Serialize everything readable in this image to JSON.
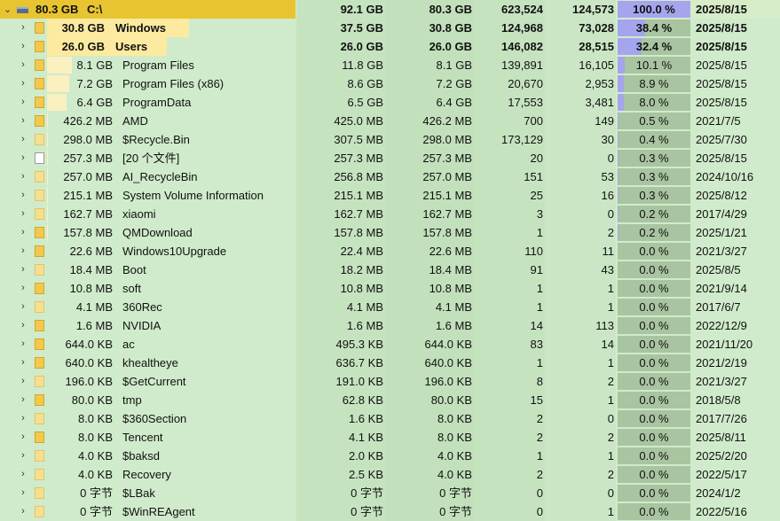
{
  "root": {
    "expand_icon": "chevron-down-icon",
    "drive_icon": "drive-icon",
    "size": "80.3 GB",
    "name": "C:\\",
    "total": "92.1 GB",
    "size2": "80.3 GB",
    "files": "623,524",
    "dirs": "124,573",
    "percent": "100.0 %",
    "percent_value": 100,
    "date": "2025/8/15"
  },
  "colors": {
    "background": "#d0ebcb",
    "highlight": "#f5d64c",
    "percent_fill": "#a5a5ee",
    "percent_cell": "#a8c4a0",
    "folder": "#f2c94c"
  },
  "rows": [
    {
      "size": "30.8 GB",
      "name": "Windows",
      "total": "37.5 GB",
      "size2": "30.8 GB",
      "files": "124,968",
      "dirs": "73,028",
      "percent": "38.4 %",
      "pv": 38.4,
      "date": "2025/8/15",
      "bold": true,
      "icon": "folder",
      "share": 0.384
    },
    {
      "size": "26.0 GB",
      "name": "Users",
      "total": "26.0 GB",
      "size2": "26.0 GB",
      "files": "146,082",
      "dirs": "28,515",
      "percent": "32.4 %",
      "pv": 32.4,
      "date": "2025/8/15",
      "bold": true,
      "icon": "folder",
      "share": 0.324
    },
    {
      "size": "8.1 GB",
      "name": "Program Files",
      "total": "11.8 GB",
      "size2": "8.1 GB",
      "files": "139,891",
      "dirs": "16,105",
      "percent": "10.1 %",
      "pv": 10.1,
      "date": "2025/8/15",
      "icon": "folder",
      "share": 0.101
    },
    {
      "size": "7.2 GB",
      "name": "Program Files (x86)",
      "total": "8.6 GB",
      "size2": "7.2 GB",
      "files": "20,670",
      "dirs": "2,953",
      "percent": "8.9 %",
      "pv": 8.9,
      "date": "2025/8/15",
      "icon": "folder",
      "share": 0.089
    },
    {
      "size": "6.4 GB",
      "name": "ProgramData",
      "total": "6.5 GB",
      "size2": "6.4 GB",
      "files": "17,553",
      "dirs": "3,481",
      "percent": "8.0 %",
      "pv": 8.0,
      "date": "2025/8/15",
      "icon": "folder",
      "share": 0.08
    },
    {
      "size": "426.2 MB",
      "name": "AMD",
      "total": "425.0 MB",
      "size2": "426.2 MB",
      "files": "700",
      "dirs": "149",
      "percent": "0.5 %",
      "pv": 0.5,
      "date": "2021/7/5",
      "icon": "folder",
      "share": 0.005
    },
    {
      "size": "298.0 MB",
      "name": "$Recycle.Bin",
      "total": "307.5 MB",
      "size2": "298.0 MB",
      "files": "173,129",
      "dirs": "30",
      "percent": "0.4 %",
      "pv": 0.4,
      "date": "2025/7/30",
      "icon": "folder-dim",
      "share": 0.004
    },
    {
      "size": "257.3 MB",
      "name": "[20 个文件]",
      "total": "257.3 MB",
      "size2": "257.3 MB",
      "files": "20",
      "dirs": "0",
      "percent": "0.3 %",
      "pv": 0.3,
      "date": "2025/8/15",
      "icon": "file",
      "share": 0.003
    },
    {
      "size": "257.0 MB",
      "name": "AI_RecycleBin",
      "total": "256.8 MB",
      "size2": "257.0 MB",
      "files": "151",
      "dirs": "53",
      "percent": "0.3 %",
      "pv": 0.3,
      "date": "2024/10/16",
      "icon": "folder-dim",
      "share": 0.003
    },
    {
      "size": "215.1 MB",
      "name": "System Volume Information",
      "total": "215.1 MB",
      "size2": "215.1 MB",
      "files": "25",
      "dirs": "16",
      "percent": "0.3 %",
      "pv": 0.3,
      "date": "2025/8/12",
      "icon": "folder-dim",
      "share": 0.003
    },
    {
      "size": "162.7 MB",
      "name": "xiaomi",
      "total": "162.7 MB",
      "size2": "162.7 MB",
      "files": "3",
      "dirs": "0",
      "percent": "0.2 %",
      "pv": 0.2,
      "date": "2017/4/29",
      "icon": "folder-dim",
      "share": 0.002
    },
    {
      "size": "157.8 MB",
      "name": "QMDownload",
      "total": "157.8 MB",
      "size2": "157.8 MB",
      "files": "1",
      "dirs": "2",
      "percent": "0.2 %",
      "pv": 0.2,
      "date": "2025/1/21",
      "icon": "folder",
      "share": 0.002
    },
    {
      "size": "22.6 MB",
      "name": "Windows10Upgrade",
      "total": "22.4 MB",
      "size2": "22.6 MB",
      "files": "110",
      "dirs": "11",
      "percent": "0.0 %",
      "pv": 0,
      "date": "2021/3/27",
      "icon": "folder",
      "share": 0
    },
    {
      "size": "18.4 MB",
      "name": "Boot",
      "total": "18.2 MB",
      "size2": "18.4 MB",
      "files": "91",
      "dirs": "43",
      "percent": "0.0 %",
      "pv": 0,
      "date": "2025/8/5",
      "icon": "folder-dim",
      "share": 0
    },
    {
      "size": "10.8 MB",
      "name": "soft",
      "total": "10.8 MB",
      "size2": "10.8 MB",
      "files": "1",
      "dirs": "1",
      "percent": "0.0 %",
      "pv": 0,
      "date": "2021/9/14",
      "icon": "folder",
      "share": 0
    },
    {
      "size": "4.1 MB",
      "name": "360Rec",
      "total": "4.1 MB",
      "size2": "4.1 MB",
      "files": "1",
      "dirs": "1",
      "percent": "0.0 %",
      "pv": 0,
      "date": "2017/6/7",
      "icon": "folder-dim",
      "share": 0
    },
    {
      "size": "1.6 MB",
      "name": "NVIDIA",
      "total": "1.6 MB",
      "size2": "1.6 MB",
      "files": "14",
      "dirs": "113",
      "percent": "0.0 %",
      "pv": 0,
      "date": "2022/12/9",
      "icon": "folder",
      "share": 0
    },
    {
      "size": "644.0 KB",
      "name": "ac",
      "total": "495.3 KB",
      "size2": "644.0 KB",
      "files": "83",
      "dirs": "14",
      "percent": "0.0 %",
      "pv": 0,
      "date": "2021/11/20",
      "icon": "folder",
      "share": 0
    },
    {
      "size": "640.0 KB",
      "name": "khealtheye",
      "total": "636.7 KB",
      "size2": "640.0 KB",
      "files": "1",
      "dirs": "1",
      "percent": "0.0 %",
      "pv": 0,
      "date": "2021/2/19",
      "icon": "folder",
      "share": 0
    },
    {
      "size": "196.0 KB",
      "name": "$GetCurrent",
      "total": "191.0 KB",
      "size2": "196.0 KB",
      "files": "8",
      "dirs": "2",
      "percent": "0.0 %",
      "pv": 0,
      "date": "2021/3/27",
      "icon": "folder-dim",
      "share": 0
    },
    {
      "size": "80.0 KB",
      "name": "tmp",
      "total": "62.8 KB",
      "size2": "80.0 KB",
      "files": "15",
      "dirs": "1",
      "percent": "0.0 %",
      "pv": 0,
      "date": "2018/5/8",
      "icon": "folder",
      "share": 0
    },
    {
      "size": "8.0 KB",
      "name": "$360Section",
      "total": "1.6 KB",
      "size2": "8.0 KB",
      "files": "2",
      "dirs": "0",
      "percent": "0.0 %",
      "pv": 0,
      "date": "2017/7/26",
      "icon": "folder-dim",
      "share": 0
    },
    {
      "size": "8.0 KB",
      "name": "Tencent",
      "total": "4.1 KB",
      "size2": "8.0 KB",
      "files": "2",
      "dirs": "2",
      "percent": "0.0 %",
      "pv": 0,
      "date": "2025/8/11",
      "icon": "folder",
      "share": 0
    },
    {
      "size": "4.0 KB",
      "name": "$baksd",
      "total": "2.0 KB",
      "size2": "4.0 KB",
      "files": "1",
      "dirs": "1",
      "percent": "0.0 %",
      "pv": 0,
      "date": "2025/2/20",
      "icon": "folder-dim",
      "share": 0
    },
    {
      "size": "4.0 KB",
      "name": "Recovery",
      "total": "2.5 KB",
      "size2": "4.0 KB",
      "files": "2",
      "dirs": "2",
      "percent": "0.0 %",
      "pv": 0,
      "date": "2022/5/17",
      "icon": "folder-dim",
      "share": 0
    },
    {
      "size": "0 字节",
      "name": "$LBak",
      "total": "0 字节",
      "size2": "0 字节",
      "files": "0",
      "dirs": "0",
      "percent": "0.0 %",
      "pv": 0,
      "date": "2024/1/2",
      "icon": "folder-dim",
      "share": 0
    },
    {
      "size": "0 字节",
      "name": "$WinREAgent",
      "total": "0 字节",
      "size2": "0 字节",
      "files": "0",
      "dirs": "1",
      "percent": "0.0 %",
      "pv": 0,
      "date": "2022/5/16",
      "icon": "folder-dim",
      "share": 0
    }
  ]
}
